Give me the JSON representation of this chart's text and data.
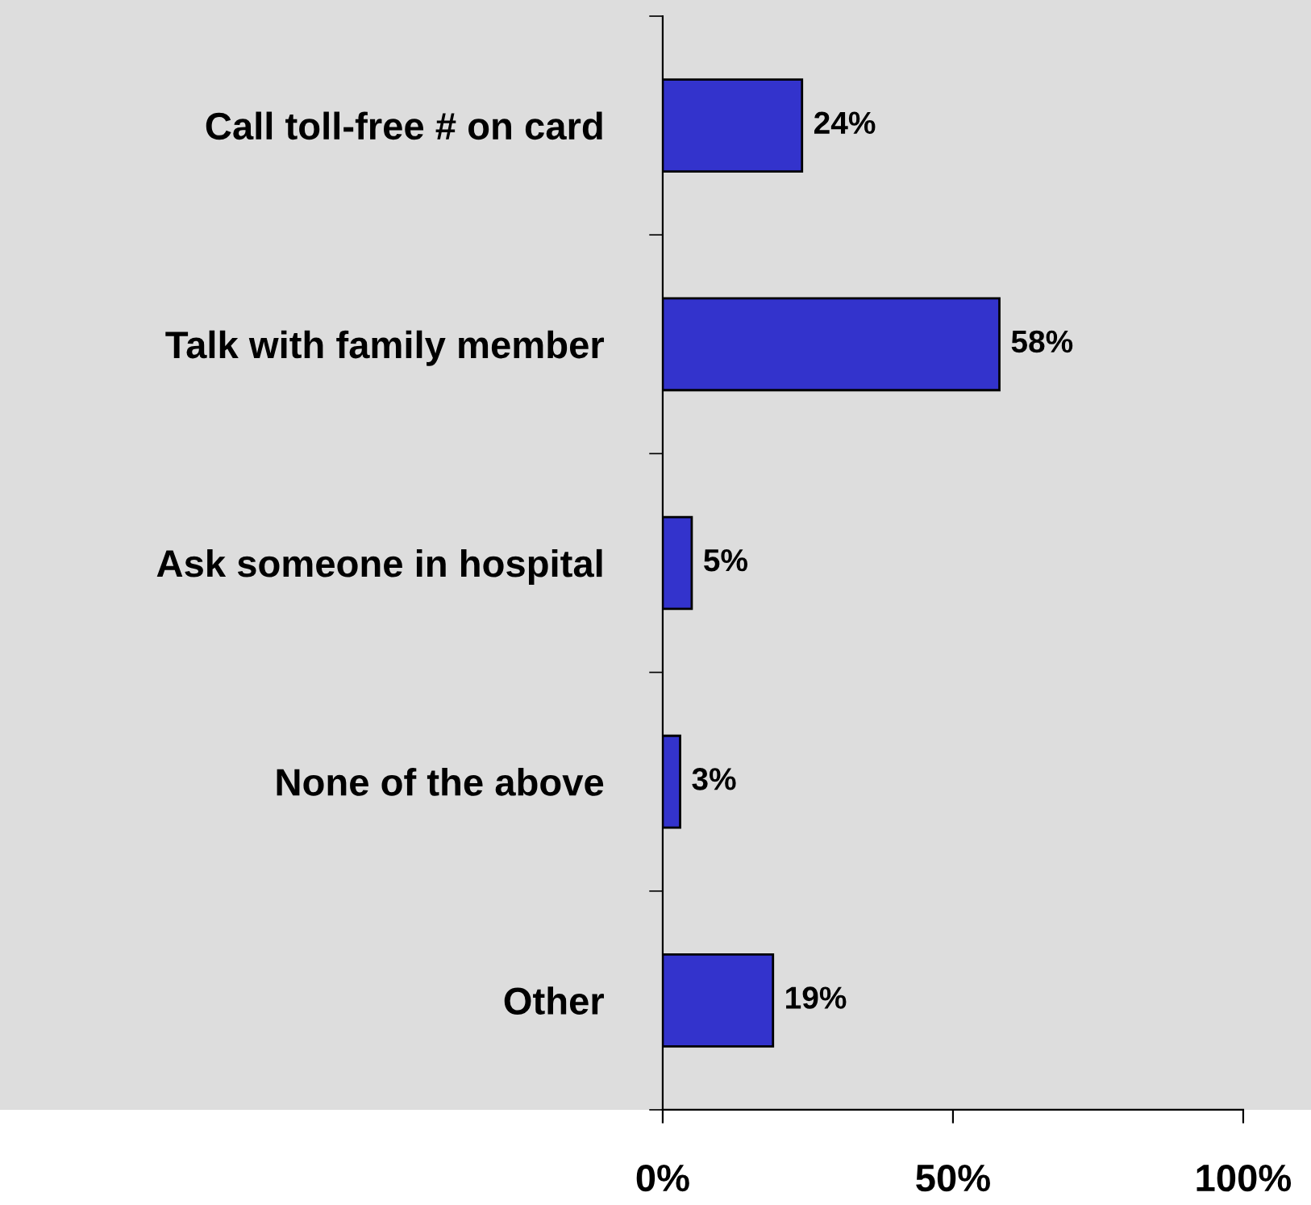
{
  "chart_data": {
    "type": "bar",
    "orientation": "horizontal",
    "categories": [
      "Call toll-free # on card",
      "Talk with family member",
      "Ask someone in hospital",
      "None of the above",
      "Other"
    ],
    "values": [
      24,
      58,
      5,
      3,
      19
    ],
    "value_labels": [
      "24%",
      "58%",
      "5%",
      "3%",
      "19%"
    ],
    "color": "#3333cc",
    "xlim": [
      0,
      100
    ],
    "xticks": [
      {
        "value": 0,
        "label": "0%"
      },
      {
        "value": 50,
        "label": "50%"
      },
      {
        "value": 100,
        "label": "100%"
      }
    ],
    "grid": false
  }
}
